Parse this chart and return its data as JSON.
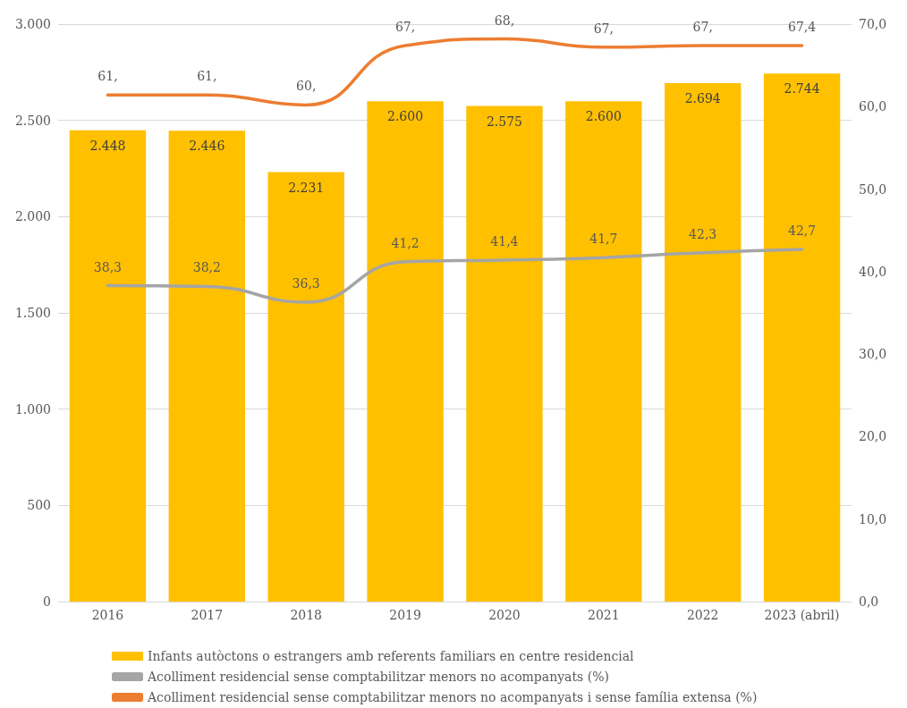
{
  "chart_data": {
    "type": "bar",
    "categories": [
      "2016",
      "2017",
      "2018",
      "2019",
      "2020",
      "2021",
      "2022",
      "2023 (abril)"
    ],
    "series": [
      {
        "name": "Infants autòctons o estrangers amb referents familiars en centre residencial",
        "color": "#ffc000",
        "values": [
          2448,
          2446,
          2231,
          2600,
          2575,
          2600,
          2694,
          2744
        ],
        "value_labels": [
          "2.448",
          "2.446",
          "2.231",
          "2.600",
          "2.575",
          "2.600",
          "2.694",
          "2.744"
        ]
      },
      {
        "name": "Acolliment residencial sense comptabilitzar menors no acompanyats (%)",
        "type": "line",
        "axis": "y2",
        "color": "#a5a5a5",
        "values": [
          38.3,
          38.2,
          36.3,
          41.2,
          41.4,
          41.7,
          42.3,
          42.7
        ],
        "value_labels": [
          "38,3",
          "38,2",
          "36,3",
          "41,2",
          "41,4",
          "41,7",
          "42,3",
          "42,7"
        ]
      },
      {
        "name": "Acolliment residencial sense comptabilitzar menors no acompanyats i sense família extensa (%)",
        "type": "line",
        "axis": "y2",
        "color": "#ed7d31",
        "values": [
          61.4,
          61.4,
          60.2,
          67.4,
          68.2,
          67.2,
          67.4,
          67.4
        ],
        "value_labels": [
          "61,",
          "61,",
          "60,",
          "67,",
          "68,",
          "67,",
          "67,",
          "67,4"
        ]
      }
    ],
    "ylim": [
      0,
      3000
    ],
    "yticks": [
      0,
      {
        "value": 500,
        "label": "500"
      },
      {
        "value": 1000,
        "label": "1.000"
      },
      {
        "value": 1500,
        "label": "1.500"
      },
      {
        "value": 2000,
        "label": "2.000"
      },
      {
        "value": 2500,
        "label": "2.500"
      },
      {
        "value": 3000,
        "label": "3.000"
      }
    ],
    "y2lim": [
      0,
      70
    ],
    "y2ticks": [
      {
        "value": 0,
        "label": "0,0"
      },
      {
        "value": 10,
        "label": "10,0"
      },
      {
        "value": 20,
        "label": "20,0"
      },
      {
        "value": 30,
        "label": "30,0"
      },
      {
        "value": 40,
        "label": "40,0"
      },
      {
        "value": 50,
        "label": "50,0"
      },
      {
        "value": 60,
        "label": "60,0"
      },
      {
        "value": 70,
        "label": "70,0"
      }
    ],
    "grid": "y",
    "legend": "bottom",
    "marker": "none"
  }
}
